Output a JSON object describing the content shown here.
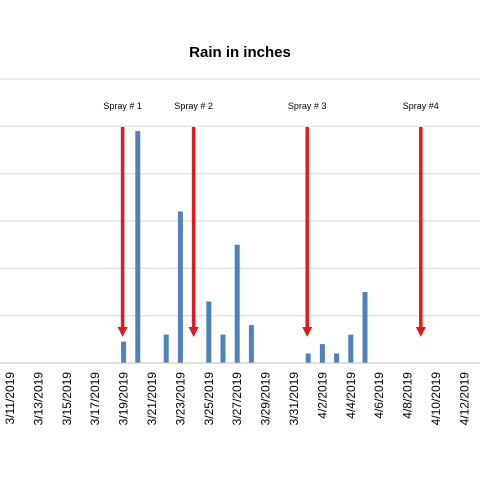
{
  "chart_data": {
    "type": "bar",
    "title": "Rain in inches",
    "xlabel": "",
    "ylabel": "",
    "grid": true,
    "ylim": [
      0,
      1.2
    ],
    "categories": [
      "3/11/2019",
      "3/12/2019",
      "3/13/2019",
      "3/14/2019",
      "3/15/2019",
      "3/16/2019",
      "3/17/2019",
      "3/18/2019",
      "3/19/2019",
      "3/20/2019",
      "3/21/2019",
      "3/22/2019",
      "3/23/2019",
      "3/24/2019",
      "3/25/2019",
      "3/26/2019",
      "3/27/2019",
      "3/28/2019",
      "3/29/2019",
      "3/30/2019",
      "3/31/2019",
      "4/1/2019",
      "4/2/2019",
      "4/3/2019",
      "4/4/2019",
      "4/5/2019",
      "4/6/2019",
      "4/7/2019",
      "4/8/2019",
      "4/9/2019",
      "4/10/2019",
      "4/11/2019",
      "4/12/2019"
    ],
    "values": [
      0,
      0,
      0,
      0,
      0,
      0,
      0,
      0,
      0.09,
      0.98,
      0,
      0.12,
      0.64,
      0,
      0.26,
      0.12,
      0.5,
      0.16,
      0,
      0,
      0,
      0.04,
      0.08,
      0.04,
      0.12,
      0.3,
      0,
      0,
      0,
      0,
      0,
      0,
      0
    ],
    "tick_labels": [
      "3/11/2019",
      "3/13/2019",
      "3/15/2019",
      "3/17/2019",
      "3/19/2019",
      "3/21/2019",
      "3/23/2019",
      "3/25/2019",
      "3/27/2019",
      "3/29/2019",
      "3/31/2019",
      "4/2/2019",
      "4/4/2019",
      "4/6/2019",
      "4/8/2019",
      "4/10/2019",
      "4/12/2019"
    ],
    "bar_color": "#4f81bd",
    "annotations": [
      {
        "label": "Spray # 1",
        "at": "3/19/2019",
        "color": "#e01b1b"
      },
      {
        "label": "Spray # 2",
        "at": "3/24/2019",
        "color": "#e01b1b"
      },
      {
        "label": "Spray # 3",
        "at": "4/1/2019",
        "color": "#e01b1b"
      },
      {
        "label": "Spray #4",
        "at": "4/9/2019",
        "color": "#e01b1b"
      }
    ]
  }
}
